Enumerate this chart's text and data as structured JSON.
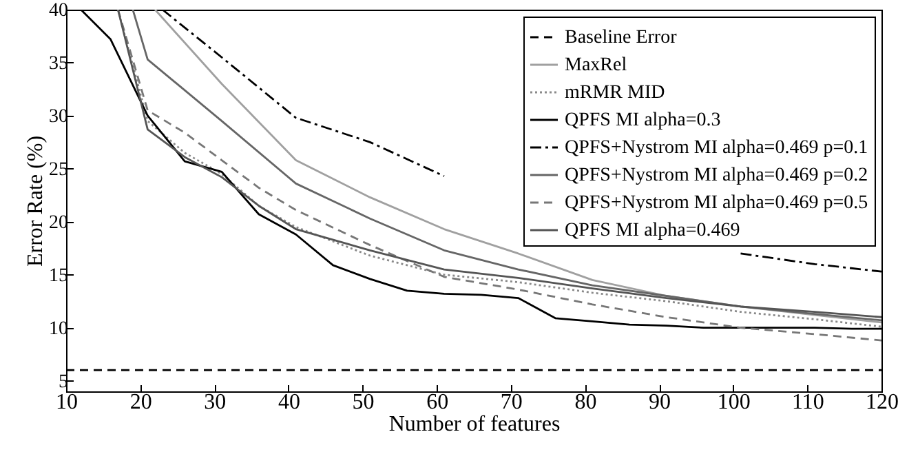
{
  "chart_data": {
    "type": "line",
    "xlabel": "Number of features",
    "ylabel": "Error Rate (%)",
    "xlim": [
      10,
      120
    ],
    "ylim": [
      4,
      40
    ],
    "xticks": [
      10,
      20,
      30,
      40,
      50,
      60,
      70,
      80,
      90,
      100,
      110,
      120
    ],
    "yticks": [
      5,
      10,
      15,
      20,
      25,
      30,
      35,
      40
    ],
    "grid": false,
    "legend": "top right",
    "series": [
      {
        "name": "Baseline Error",
        "color": "#000000",
        "line_style": "dashed",
        "x": [
          10,
          120
        ],
        "values": [
          6,
          6
        ]
      },
      {
        "name": "MaxRel",
        "color": "#a0a0a0",
        "line_style": "solid",
        "x": [
          22,
          31,
          41,
          51,
          61,
          71,
          81,
          91,
          101,
          111,
          120
        ],
        "values": [
          40,
          33,
          25.8,
          22.3,
          19.3,
          17,
          14.5,
          13,
          12,
          11.2,
          10.5
        ]
      },
      {
        "name": "mRMR MID",
        "color": "#8a8a8a",
        "line_style": "dotted",
        "x": [
          17,
          21,
          26,
          31,
          36,
          41,
          51,
          61,
          71,
          81,
          91,
          101,
          111,
          120
        ],
        "values": [
          40,
          29.5,
          26.5,
          24.5,
          21.5,
          19.5,
          16.8,
          15,
          14.3,
          13.3,
          12.5,
          11.5,
          10.8,
          10.1
        ]
      },
      {
        "name": "QPFS MI alpha=0.3",
        "color": "#000000",
        "line_style": "solid",
        "x": [
          12,
          16,
          21,
          26,
          31,
          36,
          41,
          46,
          51,
          56,
          61,
          66,
          71,
          76,
          81,
          86,
          91,
          96,
          101,
          106,
          111,
          116,
          120
        ],
        "values": [
          40,
          37.2,
          30,
          25.7,
          24.7,
          20.7,
          18.8,
          15.9,
          14.6,
          13.5,
          13.2,
          13.1,
          12.8,
          10.9,
          10.6,
          10.3,
          10.2,
          10,
          10,
          10,
          10,
          9.9,
          9.9
        ]
      },
      {
        "name": "QPFS+Nystrom MI alpha=0.469 p=0.1",
        "color": "#000000",
        "line_style": "dashdot",
        "x": [
          23,
          31,
          41,
          51,
          61,
          71,
          81,
          91,
          101,
          111,
          120
        ],
        "values": [
          40,
          35.5,
          29.8,
          27.5,
          24.3,
          null,
          null,
          null,
          17,
          16,
          15.3
        ]
      },
      {
        "name": "QPFS+Nystrom MI alpha=0.469 p=0.2",
        "color": "#666666",
        "line_style": "solid",
        "x": [
          19,
          21,
          31,
          41,
          51,
          61,
          71,
          81,
          91,
          101,
          111,
          120
        ],
        "values": [
          40,
          35.3,
          29.5,
          23.6,
          20.3,
          17.3,
          15.5,
          14,
          13,
          12,
          11.3,
          10.7
        ]
      },
      {
        "name": "QPFS+Nystrom MI alpha=0.469 p=0.5",
        "color": "#777777",
        "line_style": "dashed",
        "x": [
          17,
          21,
          26,
          31,
          36,
          41,
          51,
          61,
          71,
          81,
          91,
          101,
          111,
          120
        ],
        "values": [
          40,
          30.5,
          28.4,
          25.8,
          23.2,
          21.1,
          17.8,
          14.8,
          13.6,
          12.2,
          11,
          10,
          9.4,
          8.8
        ]
      },
      {
        "name": "QPFS MI alpha=0.469",
        "color": "#555555",
        "line_style": "solid",
        "x": [
          17,
          21,
          26,
          31,
          36,
          41,
          51,
          61,
          71,
          81,
          91,
          101,
          111,
          120
        ],
        "values": [
          40,
          28.7,
          26.1,
          24.2,
          21.5,
          19.3,
          17.3,
          15.5,
          14.7,
          13.7,
          12.8,
          12,
          11.5,
          11
        ]
      }
    ]
  }
}
